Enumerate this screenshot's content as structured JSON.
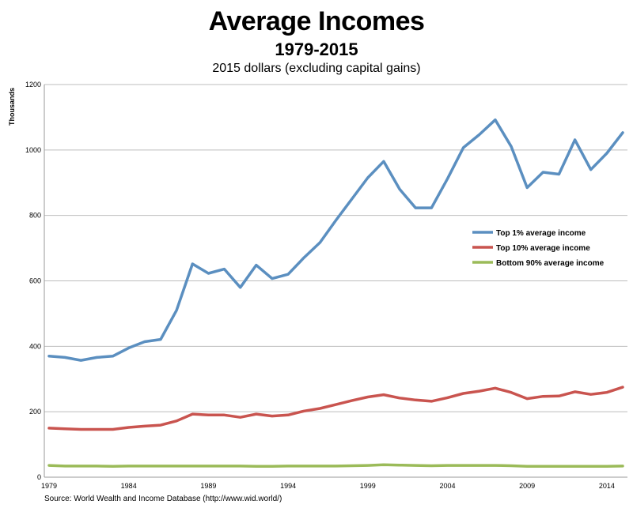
{
  "chart_data": {
    "type": "line",
    "title": "Average Incomes",
    "subtitle": "1979-2015",
    "subtitle2": "2015 dollars (excluding capital gains)",
    "ylabel": "Thousands",
    "xlabel": "",
    "source": "Source: World Wealth and Income Database (http://www.wid.world/)",
    "xlim": [
      1979,
      2015
    ],
    "ylim": [
      0,
      1200
    ],
    "yticks": [
      0,
      200,
      400,
      600,
      800,
      1000,
      1200
    ],
    "xticks": [
      1979,
      1984,
      1989,
      1994,
      1999,
      2004,
      2009,
      2014
    ],
    "grid": "horizontal",
    "legend_position": "right",
    "x": [
      1979,
      1980,
      1981,
      1982,
      1983,
      1984,
      1985,
      1986,
      1987,
      1988,
      1989,
      1990,
      1991,
      1992,
      1993,
      1994,
      1995,
      1996,
      1997,
      1998,
      1999,
      2000,
      2001,
      2002,
      2003,
      2004,
      2005,
      2006,
      2007,
      2008,
      2009,
      2010,
      2011,
      2012,
      2013,
      2014,
      2015
    ],
    "series": [
      {
        "name": "Top 1% average income",
        "color": "#5b8fc0",
        "values": [
          370,
          366,
          357,
          366,
          370,
          395,
          414,
          421,
          510,
          652,
          623,
          636,
          580,
          648,
          607,
          620,
          671,
          717,
          785,
          850,
          915,
          965,
          880,
          823,
          823,
          912,
          1007,
          1047,
          1092,
          1011,
          885,
          932,
          926,
          1031,
          940,
          990,
          1053
        ]
      },
      {
        "name": "Top 10% average income",
        "color": "#c9544f",
        "values": [
          150,
          148,
          146,
          146,
          146,
          152,
          156,
          159,
          172,
          193,
          190,
          190,
          183,
          193,
          187,
          190,
          202,
          210,
          222,
          234,
          245,
          252,
          242,
          236,
          232,
          243,
          256,
          263,
          272,
          259,
          240,
          247,
          248,
          261,
          253,
          259,
          275
        ]
      },
      {
        "name": "Bottom 90% average income",
        "color": "#9bbb59",
        "values": [
          36,
          34,
          34,
          34,
          33,
          34,
          34,
          34,
          34,
          34,
          34,
          34,
          34,
          33,
          33,
          34,
          34,
          34,
          34,
          35,
          36,
          38,
          37,
          36,
          35,
          36,
          36,
          36,
          36,
          35,
          33,
          33,
          33,
          33,
          33,
          33,
          34
        ]
      }
    ]
  }
}
